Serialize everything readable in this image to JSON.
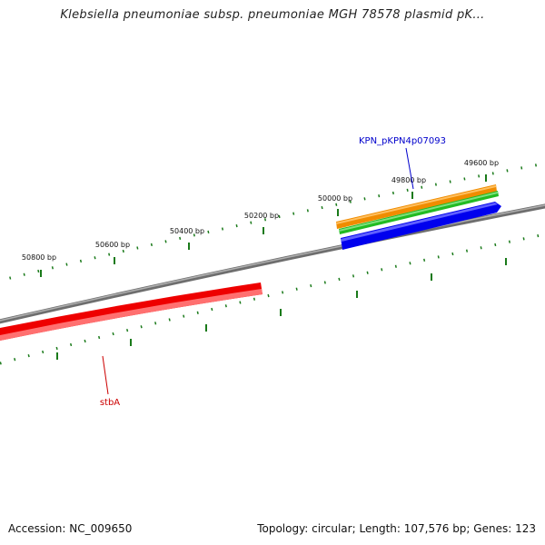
{
  "title": "Klebsiella pneumoniae subsp. pneumoniae MGH 78578 plasmid pK...",
  "footer": {
    "accession_label": "Accession:",
    "accession": "NC_009650",
    "topology_label": "Topology:",
    "topology": "circular",
    "length_label": "Length:",
    "length": "107,576 bp",
    "genes_label": "Genes:",
    "genes": "123"
  },
  "ticks": [
    {
      "bp": 49600,
      "label": "49600 bp"
    },
    {
      "bp": 49800,
      "label": "49800 bp"
    },
    {
      "bp": 50000,
      "label": "50000 bp"
    },
    {
      "bp": 50200,
      "label": "50200 bp"
    },
    {
      "bp": 50400,
      "label": "50400 bp"
    },
    {
      "bp": 50600,
      "label": "50600 bp"
    },
    {
      "bp": 50800,
      "label": "50800 bp"
    }
  ],
  "features": [
    {
      "name": "KPN_pKPN4p07093",
      "strand": "+",
      "color": "#0000ee",
      "labeled": true
    },
    {
      "name": "stbA",
      "strand": "-",
      "color": "#ee0000",
      "labeled": true
    },
    {
      "name": "",
      "strand": "+",
      "color": "#f08c00",
      "labeled": false
    },
    {
      "name": "",
      "strand": "+",
      "color": "#22bb22",
      "labeled": false
    }
  ],
  "colors": {
    "backbone": "#808080",
    "tick": "#1a7a1a",
    "feature_label_plus": "#0000cc",
    "feature_label_minus": "#cc0000"
  }
}
